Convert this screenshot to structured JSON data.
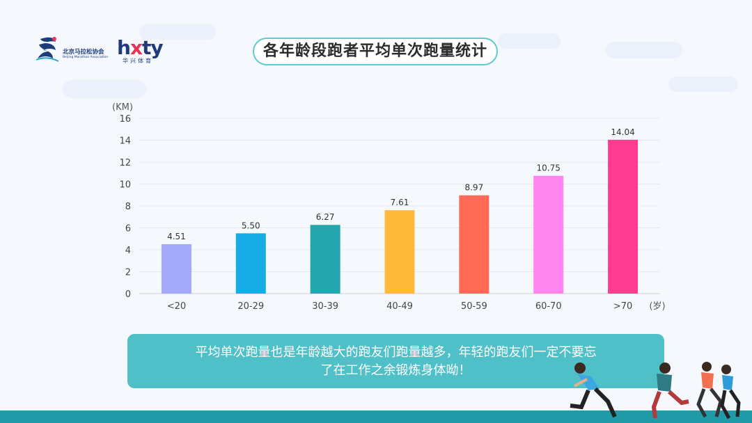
{
  "logos": {
    "bma_name": "北京马拉松协会",
    "bma_sub": "Beijing Marathon Association",
    "hxty_word_a": "h",
    "hxty_word_x": "x",
    "hxty_word_b": "ty",
    "hxty_sub": "华兴体育"
  },
  "title": "各年龄段跑者平均单次跑量统计",
  "chart_data": {
    "type": "bar",
    "categories": [
      "<20",
      "20-29",
      "30-39",
      "40-49",
      "50-59",
      "60-70",
      ">70"
    ],
    "values": [
      4.51,
      5.5,
      6.27,
      7.61,
      8.97,
      10.75,
      14.04
    ],
    "value_labels": [
      "4.51",
      "5.50",
      "6.27",
      "7.61",
      "8.97",
      "10.75",
      "14.04"
    ],
    "colors": [
      "#a4a9fb",
      "#18ace6",
      "#25a5ae",
      "#ffba3c",
      "#ff6b57",
      "#ff85ef",
      "#ff3c8f"
    ],
    "ylabel": "(KM)",
    "xlabel": "(岁)",
    "ylim": [
      0,
      16
    ],
    "yticks": [
      0,
      2,
      4,
      6,
      8,
      10,
      12,
      14,
      16
    ],
    "grid": true
  },
  "note": {
    "line1": "平均单次跑量也是年龄越大的跑友们跑量越多，年轻的跑友们一定不要忘",
    "line2": "了在工作之余锻炼身体呦！"
  },
  "icons": {
    "bma_logo": "bma-logo-icon",
    "runners": "runners-illustration-icon"
  }
}
